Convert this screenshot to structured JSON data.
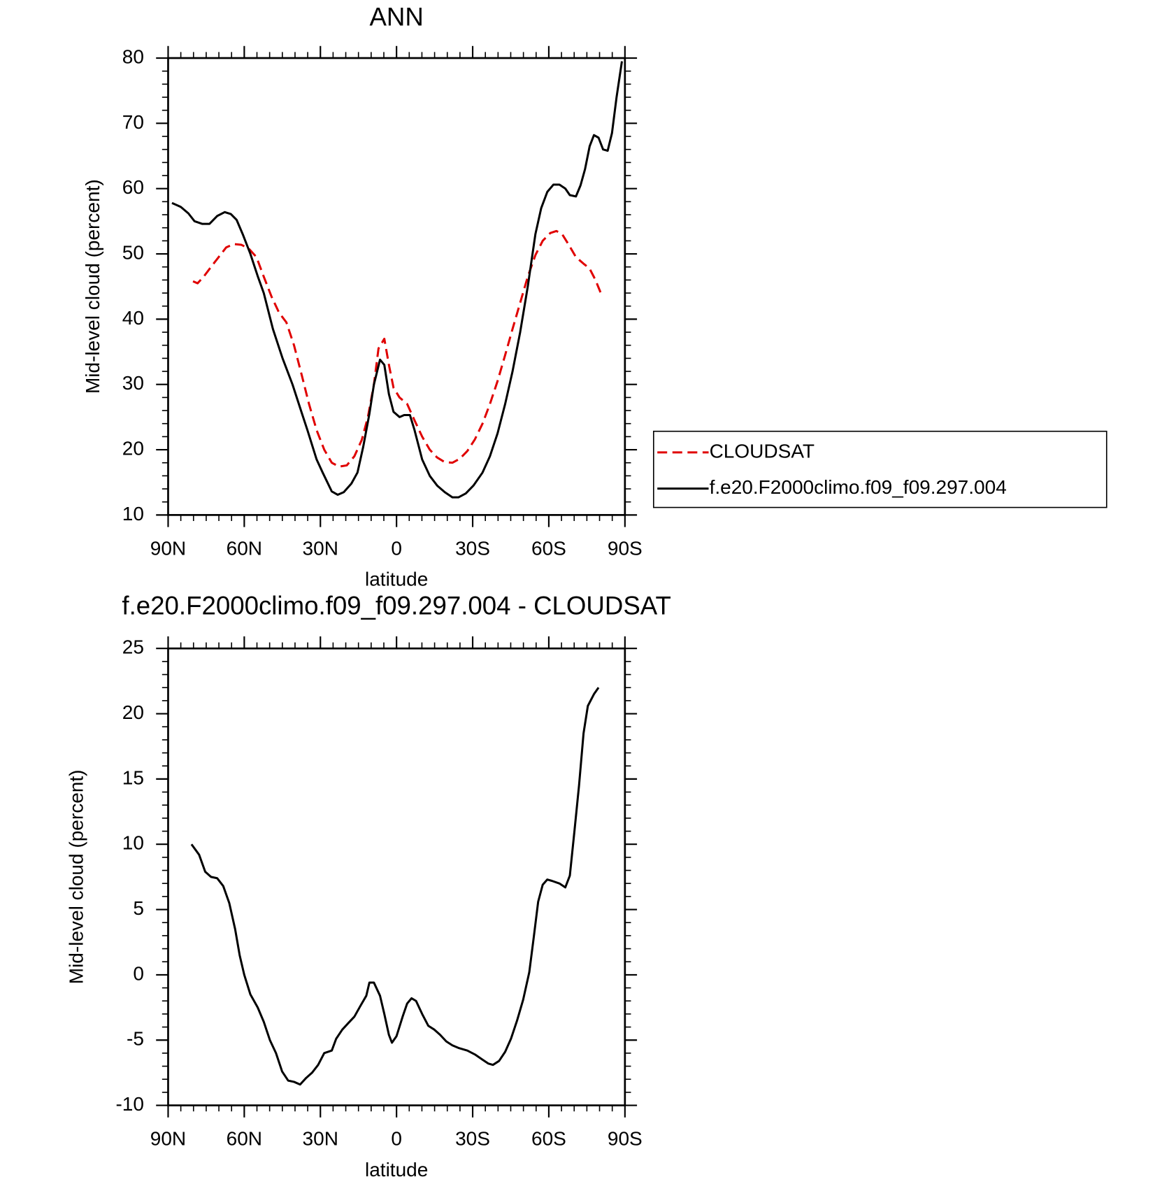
{
  "chart_data": [
    {
      "type": "line",
      "title": "ANN",
      "xlabel": "latitude",
      "ylabel": "Mid-level cloud (percent)",
      "xlim": [
        90,
        -90
      ],
      "xticks": [
        {
          "value": 90,
          "label": "90N"
        },
        {
          "value": 60,
          "label": "60N"
        },
        {
          "value": 30,
          "label": "30N"
        },
        0,
        {
          "value": -30,
          "label": "30S"
        },
        {
          "value": -60,
          "label": "60S"
        },
        {
          "value": -90,
          "label": "90S"
        }
      ],
      "ylim": [
        10,
        80
      ],
      "yticks": [
        10,
        20,
        30,
        40,
        50,
        60,
        70,
        80
      ],
      "legend": "right",
      "series": [
        {
          "name": "CLOUDSAT",
          "color": "#e00000",
          "dash": true,
          "x": [
            80.2,
            78.4,
            76.0,
            73.1,
            70.1,
            67.1,
            64.2,
            61.2,
            58.2,
            55.2,
            52.3,
            49.3,
            46.3,
            43.4,
            40.4,
            37.4,
            34.5,
            31.5,
            28.5,
            25.5,
            22.6,
            19.6,
            16.6,
            13.7,
            11.3,
            8.9,
            7.1,
            4.8,
            3.0,
            1.2,
            -1.2,
            -4.2,
            -7.1,
            -10.1,
            -13.1,
            -16.0,
            -19.0,
            -22.0,
            -24.9,
            -27.9,
            -30.9,
            -33.9,
            -36.8,
            -39.8,
            -42.8,
            -45.7,
            -48.7,
            -51.7,
            -54.7,
            -57.6,
            -60.6,
            -63.0,
            -65.3,
            -67.7,
            -70.7,
            -73.7,
            -76.0,
            -78.4,
            -80.5
          ],
          "values": [
            45.8,
            45.5,
            46.5,
            48.0,
            49.5,
            51.0,
            51.5,
            51.4,
            50.8,
            49.5,
            46.5,
            43.5,
            41.0,
            39.5,
            36.0,
            31.5,
            27.0,
            23.0,
            20.0,
            18.0,
            17.4,
            17.6,
            19.0,
            21.5,
            25.0,
            30.0,
            35.5,
            37.0,
            33.0,
            29.5,
            28.0,
            27.0,
            24.5,
            22.0,
            20.0,
            18.8,
            18.1,
            18.0,
            18.6,
            19.8,
            21.6,
            24.0,
            27.0,
            30.5,
            34.5,
            38.5,
            42.5,
            46.5,
            49.8,
            52.0,
            53.2,
            53.5,
            53.0,
            51.5,
            49.5,
            48.5,
            47.8,
            46.0,
            44.0
          ]
        },
        {
          "name": "f.e20.F2000climo.f09_f09.297.004",
          "color": "#000000",
          "dash": false,
          "x": [
            88.5,
            85.0,
            82.0,
            79.6,
            76.6,
            73.7,
            70.7,
            67.7,
            65.3,
            63.0,
            60.6,
            57.6,
            54.7,
            52.3,
            48.7,
            44.9,
            41.0,
            37.4,
            35.1,
            31.5,
            29.1,
            25.5,
            23.2,
            20.8,
            17.8,
            15.4,
            13.1,
            10.7,
            8.9,
            6.5,
            4.8,
            3.0,
            1.2,
            -1.2,
            -3.0,
            -5.3,
            -7.1,
            -10.1,
            -13.1,
            -16.0,
            -19.0,
            -22.0,
            -24.4,
            -27.3,
            -30.3,
            -33.9,
            -36.8,
            -39.8,
            -42.8,
            -45.7,
            -48.7,
            -51.7,
            -54.7,
            -57.0,
            -59.4,
            -61.8,
            -64.2,
            -66.5,
            -68.3,
            -70.7,
            -72.5,
            -74.3,
            -76.1,
            -77.8,
            -79.6,
            -81.4,
            -83.2,
            -84.9,
            -86.7,
            -88.8
          ],
          "values": [
            57.8,
            57.2,
            56.2,
            55.0,
            54.6,
            54.6,
            55.8,
            56.4,
            56.1,
            55.2,
            53.0,
            50.0,
            46.6,
            44.0,
            38.5,
            34.0,
            30.0,
            25.7,
            23.0,
            18.5,
            16.5,
            13.6,
            13.1,
            13.5,
            14.8,
            16.5,
            20.5,
            25.5,
            30.0,
            33.8,
            33.0,
            28.5,
            25.8,
            25.0,
            25.3,
            25.3,
            23.0,
            18.5,
            16.0,
            14.5,
            13.5,
            12.7,
            12.7,
            13.3,
            14.5,
            16.5,
            19.0,
            22.5,
            27.0,
            32.0,
            38.0,
            45.0,
            53.0,
            57.0,
            59.5,
            60.6,
            60.6,
            60.0,
            59.0,
            58.8,
            60.5,
            63.0,
            66.5,
            68.2,
            67.8,
            66.0,
            65.8,
            68.5,
            74.0,
            79.5
          ]
        }
      ]
    },
    {
      "type": "line",
      "title": "f.e20.F2000climo.f09_f09.297.004 - CLOUDSAT",
      "xlabel": "latitude",
      "ylabel": "Mid-level cloud (percent)",
      "xlim": [
        90,
        -90
      ],
      "xticks": [
        {
          "value": 90,
          "label": "90N"
        },
        {
          "value": 60,
          "label": "60N"
        },
        {
          "value": 30,
          "label": "30N"
        },
        0,
        {
          "value": -30,
          "label": "30S"
        },
        {
          "value": -60,
          "label": "60S"
        },
        {
          "value": -90,
          "label": "90S"
        }
      ],
      "ylim": [
        -10,
        25
      ],
      "yticks": [
        -10,
        -5,
        0,
        5,
        10,
        15,
        20,
        25
      ],
      "series": [
        {
          "color": "#000000",
          "dash": false,
          "x": [
            80.8,
            77.8,
            75.4,
            73.1,
            70.7,
            68.3,
            65.9,
            63.6,
            61.8,
            60.0,
            57.6,
            54.7,
            52.3,
            49.9,
            47.5,
            45.1,
            42.7,
            40.4,
            38.0,
            35.6,
            33.3,
            30.9,
            28.5,
            25.5,
            23.8,
            21.4,
            19.0,
            16.6,
            14.3,
            11.9,
            10.7,
            8.9,
            6.5,
            4.8,
            3.0,
            1.8,
            0.0,
            -2.4,
            -4.2,
            -5.9,
            -7.7,
            -10.1,
            -12.5,
            -14.9,
            -17.2,
            -19.6,
            -22.0,
            -24.4,
            -27.9,
            -30.9,
            -33.9,
            -36.2,
            -38.0,
            -40.4,
            -42.8,
            -45.1,
            -47.5,
            -49.9,
            -52.3,
            -54.1,
            -55.8,
            -57.6,
            -59.4,
            -61.2,
            -64.2,
            -66.5,
            -68.3,
            -70.1,
            -71.9,
            -73.7,
            -75.4,
            -77.8,
            -79.6
          ],
          "values": [
            10.0,
            9.2,
            7.9,
            7.5,
            7.4,
            6.8,
            5.5,
            3.5,
            1.5,
            0.0,
            -1.5,
            -2.5,
            -3.6,
            -5.0,
            -6.0,
            -7.4,
            -8.1,
            -8.2,
            -8.4,
            -7.9,
            -7.5,
            -6.9,
            -6.0,
            -5.8,
            -4.9,
            -4.2,
            -3.7,
            -3.2,
            -2.4,
            -1.6,
            -0.6,
            -0.6,
            -1.6,
            -3.0,
            -4.6,
            -5.2,
            -4.7,
            -3.2,
            -2.2,
            -1.8,
            -2.0,
            -3.0,
            -3.9,
            -4.2,
            -4.6,
            -5.1,
            -5.4,
            -5.6,
            -5.8,
            -6.1,
            -6.5,
            -6.8,
            -6.9,
            -6.6,
            -5.9,
            -4.9,
            -3.5,
            -1.9,
            0.2,
            2.9,
            5.6,
            6.9,
            7.3,
            7.2,
            7.0,
            6.7,
            7.6,
            11.0,
            14.5,
            18.5,
            20.6,
            21.5,
            22.0
          ]
        }
      ]
    }
  ]
}
